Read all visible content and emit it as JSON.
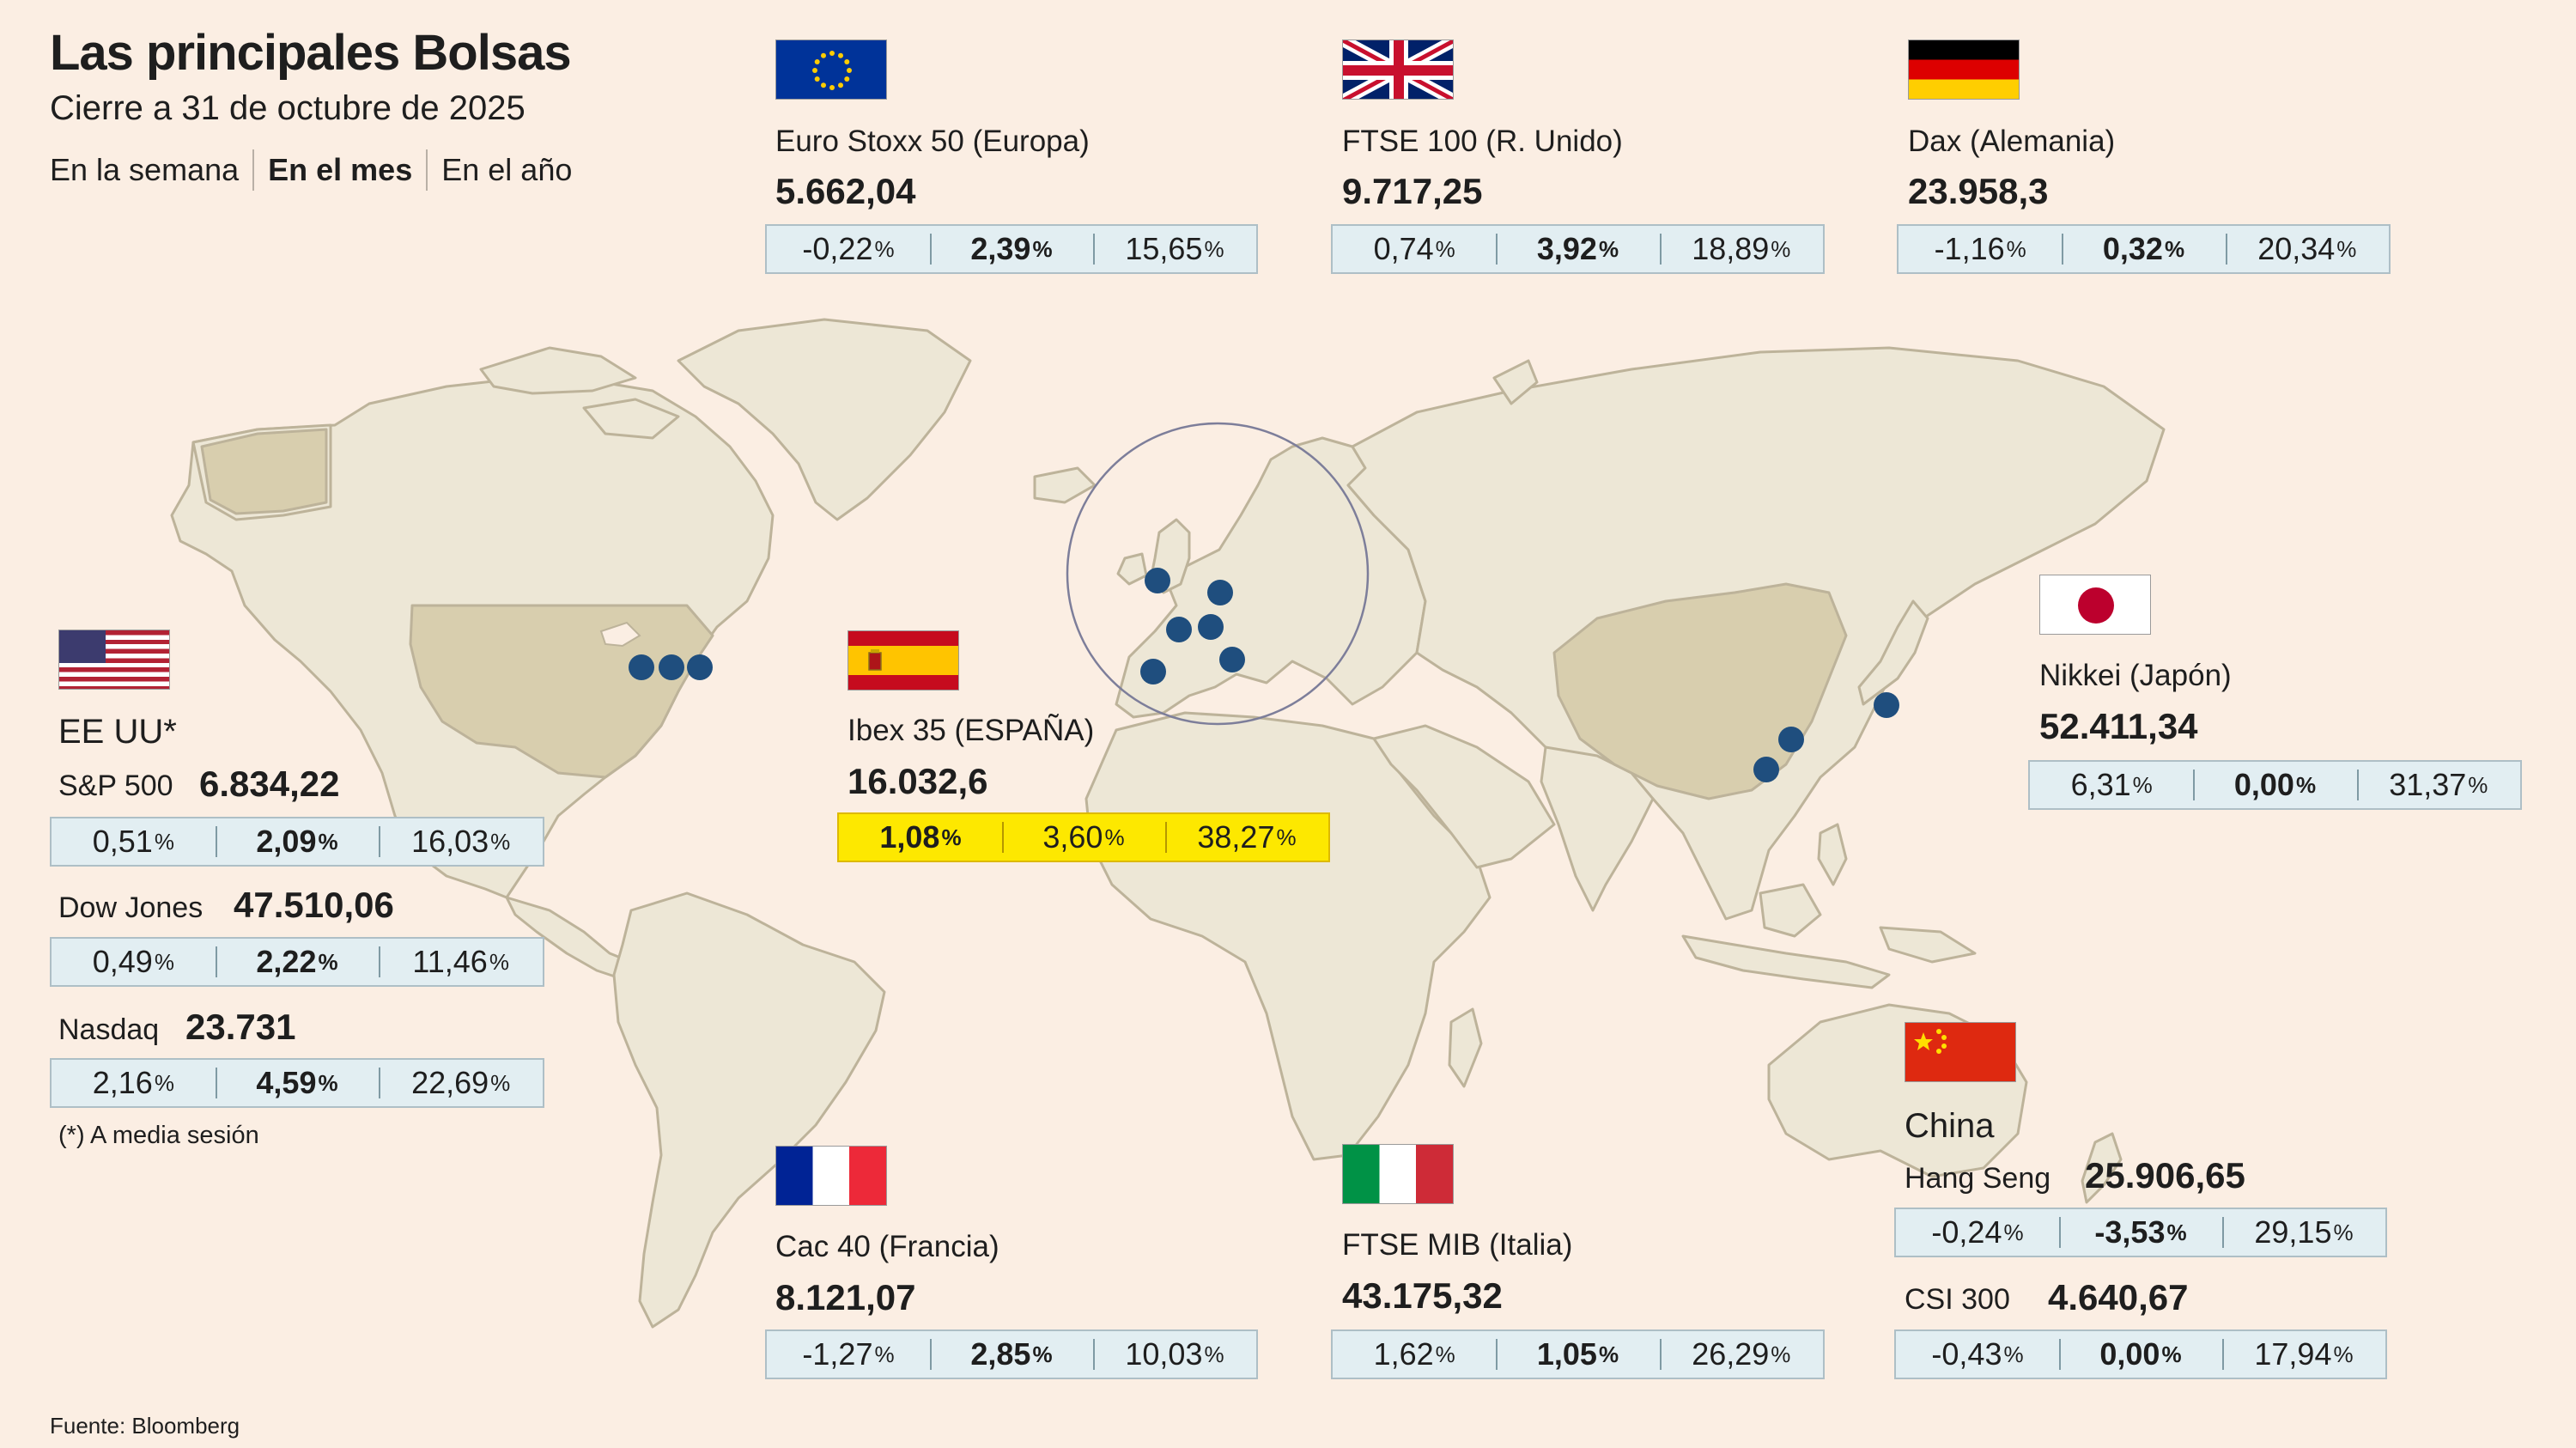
{
  "title": "Las principales Bolsas",
  "subtitle": "Cierre a 31 de octubre de 2025",
  "periods": [
    "En la semana",
    "En el mes",
    "En el año"
  ],
  "active_period": "En el mes",
  "colors": {
    "background": "#fbeee3",
    "land": "#ede7d6",
    "land_highlight": "#d8ceae",
    "border": "#bdb39a",
    "marker": "#1f4e7e",
    "box": "#e2eef2",
    "highlight_box": "#fde800"
  },
  "chart_data": {
    "type": "table",
    "title": "Las principales Bolsas",
    "subtitle": "Cierre a 31 de octubre de 2025",
    "columns": [
      "En la semana",
      "En el mes",
      "En el año"
    ],
    "unit": "%",
    "indices": [
      {
        "id": "eurostoxx",
        "flag": "eu",
        "name": "Euro Stoxx 50 (Europa)",
        "value": "5.662,04",
        "changes": [
          "-0,22",
          "2,39",
          "15,65"
        ]
      },
      {
        "id": "ftse100",
        "flag": "uk",
        "name": "FTSE 100 (R. Unido)",
        "value": "9.717,25",
        "changes": [
          "0,74",
          "3,92",
          "18,89"
        ]
      },
      {
        "id": "dax",
        "flag": "de",
        "name": "Dax (Alemania)",
        "value": "23.958,3",
        "changes": [
          "-1,16",
          "0,32",
          "20,34"
        ]
      },
      {
        "id": "ibex",
        "flag": "es",
        "name": "Ibex 35 (ESPAÑA)",
        "value": "16.032,6",
        "changes": [
          "1,08",
          "3,60",
          "38,27"
        ],
        "highlight": true
      },
      {
        "id": "nikkei",
        "flag": "jp",
        "name": "Nikkei (Japón)",
        "value": "52.411,34",
        "changes": [
          "6,31",
          "0,00",
          "31,37"
        ]
      },
      {
        "id": "cac",
        "flag": "fr",
        "name": "Cac 40 (Francia)",
        "value": "8.121,07",
        "changes": [
          "-1,27",
          "2,85",
          "10,03"
        ]
      },
      {
        "id": "ftsemib",
        "flag": "it",
        "name": "FTSE MIB (Italia)",
        "value": "43.175,32",
        "changes": [
          "1,62",
          "1,05",
          "26,29"
        ]
      },
      {
        "id": "sp500",
        "country": "EE UU*",
        "name": "S&P 500",
        "value": "6.834,22",
        "changes": [
          "0,51",
          "2,09",
          "16,03"
        ]
      },
      {
        "id": "dowjones",
        "country": "EE UU*",
        "name": "Dow Jones",
        "value": "47.510,06",
        "changes": [
          "0,49",
          "2,22",
          "11,46"
        ]
      },
      {
        "id": "nasdaq",
        "country": "EE UU*",
        "name": "Nasdaq",
        "value": "23.731",
        "changes": [
          "2,16",
          "4,59",
          "22,69"
        ]
      },
      {
        "id": "hangseng",
        "country": "China",
        "name": "Hang Seng",
        "value": "25.906,65",
        "changes": [
          "-0,24",
          "-3,53",
          "29,15"
        ]
      },
      {
        "id": "csi300",
        "country": "China",
        "name": "CSI 300",
        "value": "4.640,67",
        "changes": [
          "-0,43",
          "0,00",
          "17,94"
        ]
      }
    ],
    "markers": [
      "Nueva York",
      "Londres",
      "Fráncfort",
      "París",
      "Zúrich",
      "Madrid",
      "Milán",
      "Hong Kong",
      "Shanghái",
      "Tokio"
    ]
  },
  "groups": {
    "usa_country": "EE UU*",
    "china_country": "China"
  },
  "note": "(*) A media sesión",
  "source": "Fuente: Bloomberg"
}
